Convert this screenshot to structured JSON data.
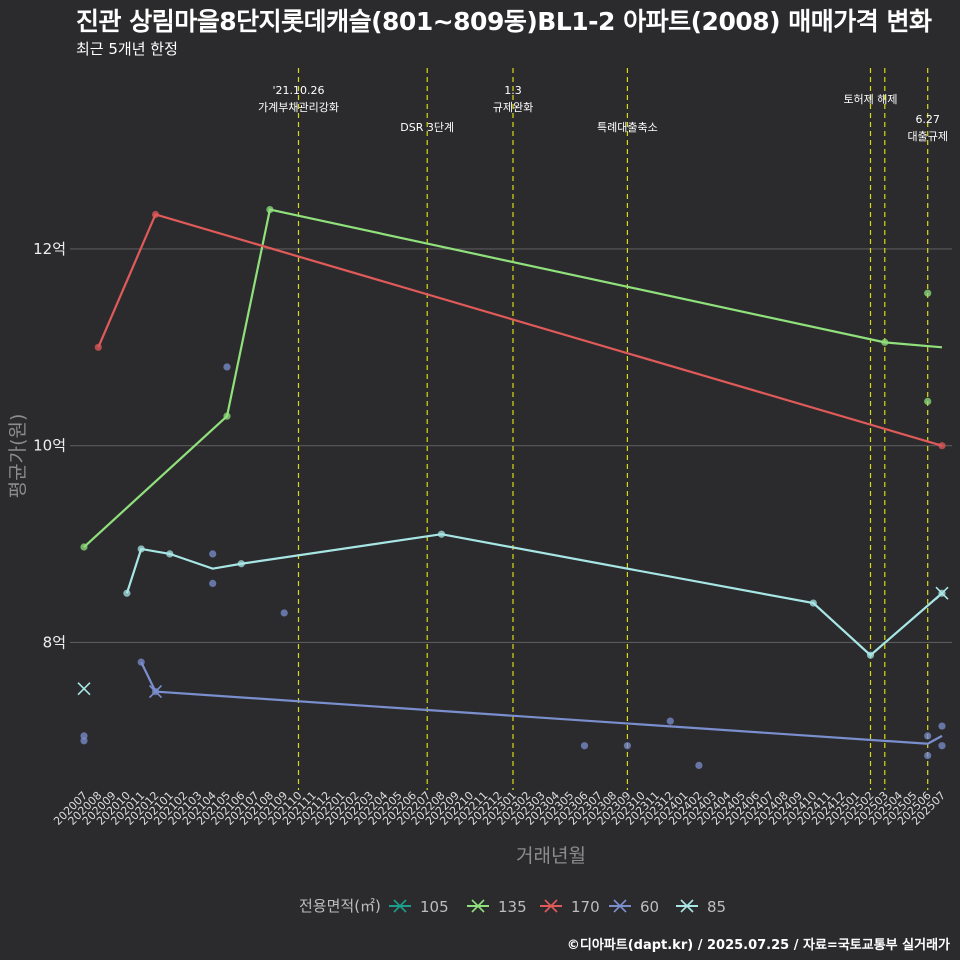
{
  "header": {
    "title": "진관 상림마을8단지롯데캐슬(801~809동)BL1-2 아파트(2008) 매매가격 변화",
    "subtitle": "최근 5개년 한정"
  },
  "footer": {
    "source": "©디아파트(dapt.kr) / 2025.07.25 / 자료=국토교통부 실거래가"
  },
  "chart_data": {
    "type": "line",
    "xlabel": "거래년월",
    "ylabel": "평균가(원)",
    "x_categories": [
      "202007",
      "202008",
      "202009",
      "202010",
      "202011",
      "202012",
      "202101",
      "202102",
      "202103",
      "202104",
      "202105",
      "202106",
      "202107",
      "202108",
      "202109",
      "202110",
      "202111",
      "202112",
      "202201",
      "202202",
      "202203",
      "202204",
      "202205",
      "202206",
      "202207",
      "202208",
      "202209",
      "202210",
      "202211",
      "202212",
      "202301",
      "202302",
      "202303",
      "202304",
      "202305",
      "202306",
      "202307",
      "202308",
      "202309",
      "202310",
      "202311",
      "202312",
      "202401",
      "202402",
      "202403",
      "202404",
      "202405",
      "202406",
      "202407",
      "202408",
      "202409",
      "202410",
      "202411",
      "202412",
      "202501",
      "202502",
      "202503",
      "202504",
      "202505",
      "202506",
      "202507"
    ],
    "y_ticks": [
      {
        "value": 8,
        "label": "8억"
      },
      {
        "value": 10,
        "label": "10억"
      },
      {
        "value": 12,
        "label": "12억"
      }
    ],
    "ylim": [
      6.5,
      13.9
    ],
    "grid": true,
    "legend": {
      "title": "전용면적(㎡)",
      "position": "bottom"
    },
    "annotations": [
      {
        "x": "202110",
        "lines": [
          "'21.10.26",
          "가계부채관리강화"
        ],
        "level": "high"
      },
      {
        "x": "202207",
        "lines": [
          "DSR 3단계"
        ],
        "level": "mid"
      },
      {
        "x": "202301",
        "lines": [
          "1.3",
          "규제완화"
        ],
        "level": "high"
      },
      {
        "x": "202309",
        "lines": [
          "특례대출축소"
        ],
        "level": "mid"
      },
      {
        "x": "202502",
        "lines": [
          "토허제 해제"
        ],
        "level": "mid-high"
      },
      {
        "x": "202503",
        "lines": [],
        "level": "none"
      },
      {
        "x": "202506",
        "lines": [
          "6.27",
          "대출규제"
        ],
        "level": "low"
      }
    ],
    "series": [
      {
        "name": "105",
        "color": "#1b9e8a",
        "line": [],
        "points": [],
        "last": null
      },
      {
        "name": "135",
        "color": "#90e07c",
        "line": [
          [
            "202007",
            8.97
          ],
          [
            "202105",
            10.3
          ],
          [
            "202108",
            12.4
          ],
          [
            "202503",
            11.05
          ],
          [
            "202507",
            11.0
          ]
        ],
        "points": [
          [
            "202007",
            8.97
          ],
          [
            "202105",
            10.3
          ],
          [
            "202108",
            12.4
          ],
          [
            "202503",
            11.05
          ],
          [
            "202506",
            11.55
          ],
          [
            "202506",
            10.45
          ]
        ],
        "last": null
      },
      {
        "name": "170",
        "color": "#e05a5a",
        "line": [
          [
            "202008",
            11.0
          ],
          [
            "202012",
            12.35
          ],
          [
            "202507",
            10.0
          ]
        ],
        "points": [
          [
            "202008",
            11.0
          ],
          [
            "202012",
            12.35
          ],
          [
            "202507",
            10.0
          ]
        ],
        "last": null
      },
      {
        "name": "60",
        "color": "#7b8fcf",
        "line": [
          [
            "202011",
            7.8
          ],
          [
            "202012",
            7.5
          ],
          [
            "202506",
            6.97
          ],
          [
            "202507",
            7.05
          ]
        ],
        "points": [
          [
            "202007",
            7.05
          ],
          [
            "202007",
            7.0
          ],
          [
            "202011",
            7.8
          ],
          [
            "202012",
            7.5
          ],
          [
            "202105",
            10.8
          ],
          [
            "202104",
            8.9
          ],
          [
            "202104",
            8.6
          ],
          [
            "202109",
            8.3
          ],
          [
            "202306",
            6.95
          ],
          [
            "202309",
            6.95
          ],
          [
            "202312",
            7.2
          ],
          [
            "202402",
            6.75
          ],
          [
            "202506",
            7.05
          ],
          [
            "202506",
            6.85
          ],
          [
            "202507",
            7.15
          ],
          [
            "202507",
            6.95
          ]
        ],
        "last": [
          "202012",
          7.5
        ]
      },
      {
        "name": "85",
        "color": "#a8e6e6",
        "line": [
          [
            "202010",
            8.5
          ],
          [
            "202011",
            8.95
          ],
          [
            "202101",
            8.9
          ],
          [
            "202104",
            8.75
          ],
          [
            "202106",
            8.8
          ],
          [
            "202208",
            9.1
          ],
          [
            "202410",
            8.4
          ],
          [
            "202502",
            7.87
          ],
          [
            "202507",
            8.5
          ]
        ],
        "points": [
          [
            "202010",
            8.5
          ],
          [
            "202011",
            8.95
          ],
          [
            "202101",
            8.9
          ],
          [
            "202106",
            8.8
          ],
          [
            "202208",
            9.1
          ],
          [
            "202410",
            8.4
          ],
          [
            "202502",
            7.87
          ],
          [
            "202507",
            8.5
          ]
        ],
        "last": [
          "202507",
          8.5
        ]
      }
    ],
    "extra_markers": [
      {
        "x": "202007",
        "y": 7.53,
        "series": "85"
      }
    ]
  }
}
